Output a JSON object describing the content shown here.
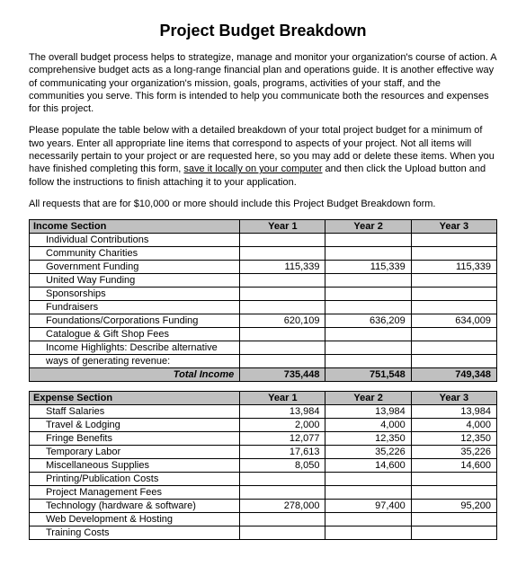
{
  "title": "Project Budget Breakdown",
  "paragraphs": {
    "p1": "The overall budget process helps to strategize, manage and monitor your organization's course of action.  A comprehensive budget acts as a long-range financial plan and operations guide.  It is another effective way of communicating your organization's mission, goals, programs, activities of your staff, and the communities you serve. This form is intended to help you communicate both the resources and expenses for this project.",
    "p2a": "Please populate the table below with a detailed breakdown of your total project budget for a minimum of two years. Enter all appropriate line items that correspond to aspects of your project. Not all items will necessarily pertain to your project or are requested here, so you may add or delete these items. When you have finished completing this form, ",
    "p2u": "save it locally on your computer",
    "p2b": " and then click the Upload button and follow the instructions to finish attaching it to your application.",
    "p3": "All requests that are for $10,000 or more should include this Project Budget Breakdown form."
  },
  "columns": {
    "year1": "Year 1",
    "year2": "Year 2",
    "year3": "Year 3"
  },
  "income": {
    "header": "Income Section",
    "rows": [
      {
        "label": "Individual Contributions",
        "y1": "",
        "y2": "",
        "y3": ""
      },
      {
        "label": "Community Charities",
        "y1": "",
        "y2": "",
        "y3": ""
      },
      {
        "label": "Government Funding",
        "y1": "115,339",
        "y2": "115,339",
        "y3": "115,339"
      },
      {
        "label": "United Way Funding",
        "y1": "",
        "y2": "",
        "y3": ""
      },
      {
        "label": "Sponsorships",
        "y1": "",
        "y2": "",
        "y3": ""
      },
      {
        "label": "Fundraisers",
        "y1": "",
        "y2": "",
        "y3": ""
      },
      {
        "label": "Foundations/Corporations Funding",
        "y1": "620,109",
        "y2": "636,209",
        "y3": "634,009"
      },
      {
        "label": "Catalogue & Gift Shop Fees",
        "y1": "",
        "y2": "",
        "y3": ""
      },
      {
        "label": "Income Highlights: Describe alternative",
        "y1": "",
        "y2": "",
        "y3": ""
      },
      {
        "label": "ways of generating revenue:",
        "y1": "",
        "y2": "",
        "y3": ""
      }
    ],
    "total": {
      "label": "Total Income",
      "y1": "735,448",
      "y2": "751,548",
      "y3": "749,348"
    }
  },
  "expense": {
    "header": "Expense Section",
    "rows": [
      {
        "label": "Staff Salaries",
        "y1": "13,984",
        "y2": "13,984",
        "y3": "13,984"
      },
      {
        "label": "Travel & Lodging",
        "y1": "2,000",
        "y2": "4,000",
        "y3": "4,000"
      },
      {
        "label": "Fringe Benefits",
        "y1": "12,077",
        "y2": "12,350",
        "y3": "12,350"
      },
      {
        "label": "Temporary Labor",
        "y1": "17,613",
        "y2": "35,226",
        "y3": "35,226"
      },
      {
        "label": "Miscellaneous Supplies",
        "y1": "8,050",
        "y2": "14,600",
        "y3": "14,600"
      },
      {
        "label": "Printing/Publication Costs",
        "y1": "",
        "y2": "",
        "y3": ""
      },
      {
        "label": "Project Management Fees",
        "y1": "",
        "y2": "",
        "y3": ""
      },
      {
        "label": "Technology (hardware & software)",
        "y1": "278,000",
        "y2": "97,400",
        "y3": "95,200"
      },
      {
        "label": "Web Development & Hosting",
        "y1": "",
        "y2": "",
        "y3": ""
      },
      {
        "label": "Training Costs",
        "y1": "",
        "y2": "",
        "y3": ""
      }
    ]
  }
}
